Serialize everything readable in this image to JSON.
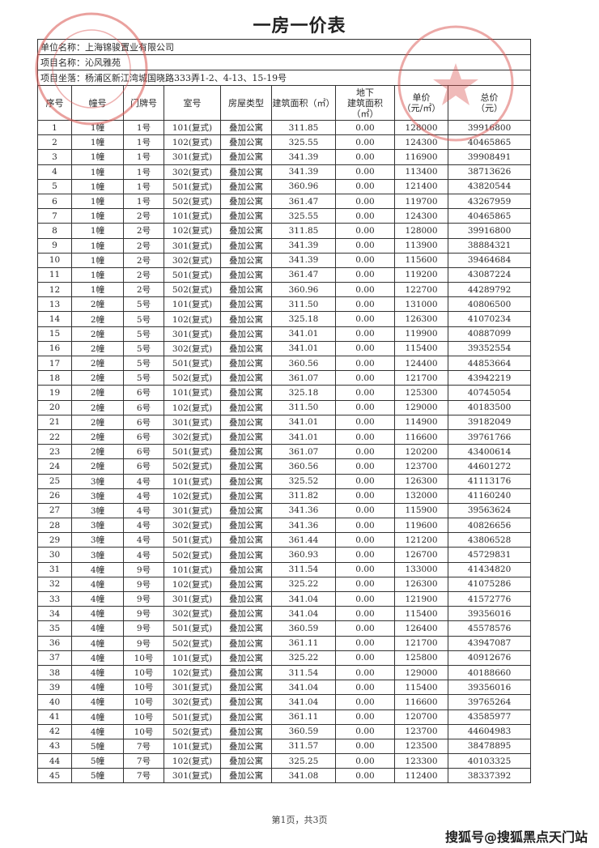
{
  "title": "一房一价表",
  "info": {
    "company": "单位名称：上海锦骏置业有限公司",
    "project": "项目名称：沁风雅苑",
    "location": "项目坐落：杨浦区新江湾城国晓路333弄1-2、4-13、15-19号"
  },
  "columns": [
    "序号",
    "幢号",
    "门牌号",
    "室号",
    "房屋类型",
    "建筑面积（㎡）",
    "地下\n建筑面积\n（㎡）",
    "单价\n（元/㎡）",
    "总价\n（元）"
  ],
  "rows": [
    [
      "1",
      "1幢",
      "1号",
      "101(复式)",
      "叠加公寓",
      "311.85",
      "0.00",
      "128000",
      "39916800"
    ],
    [
      "2",
      "1幢",
      "1号",
      "102(复式)",
      "叠加公寓",
      "325.55",
      "0.00",
      "124300",
      "40465865"
    ],
    [
      "3",
      "1幢",
      "1号",
      "301(复式)",
      "叠加公寓",
      "341.39",
      "0.00",
      "116900",
      "39908491"
    ],
    [
      "4",
      "1幢",
      "1号",
      "302(复式)",
      "叠加公寓",
      "341.39",
      "0.00",
      "113400",
      "38713626"
    ],
    [
      "5",
      "1幢",
      "1号",
      "501(复式)",
      "叠加公寓",
      "360.96",
      "0.00",
      "121400",
      "43820544"
    ],
    [
      "6",
      "1幢",
      "1号",
      "502(复式)",
      "叠加公寓",
      "361.47",
      "0.00",
      "119700",
      "43267959"
    ],
    [
      "7",
      "1幢",
      "2号",
      "101(复式)",
      "叠加公寓",
      "325.55",
      "0.00",
      "124300",
      "40465865"
    ],
    [
      "8",
      "1幢",
      "2号",
      "102(复式)",
      "叠加公寓",
      "311.85",
      "0.00",
      "128000",
      "39916800"
    ],
    [
      "9",
      "1幢",
      "2号",
      "301(复式)",
      "叠加公寓",
      "341.39",
      "0.00",
      "113900",
      "38884321"
    ],
    [
      "10",
      "1幢",
      "2号",
      "302(复式)",
      "叠加公寓",
      "341.39",
      "0.00",
      "115600",
      "39464684"
    ],
    [
      "11",
      "1幢",
      "2号",
      "501(复式)",
      "叠加公寓",
      "361.47",
      "0.00",
      "119200",
      "43087224"
    ],
    [
      "12",
      "1幢",
      "2号",
      "502(复式)",
      "叠加公寓",
      "360.96",
      "0.00",
      "122700",
      "44289792"
    ],
    [
      "13",
      "2幢",
      "5号",
      "101(复式)",
      "叠加公寓",
      "311.50",
      "0.00",
      "131000",
      "40806500"
    ],
    [
      "14",
      "2幢",
      "5号",
      "102(复式)",
      "叠加公寓",
      "325.18",
      "0.00",
      "126300",
      "41070234"
    ],
    [
      "15",
      "2幢",
      "5号",
      "301(复式)",
      "叠加公寓",
      "341.01",
      "0.00",
      "119900",
      "40887099"
    ],
    [
      "16",
      "2幢",
      "5号",
      "302(复式)",
      "叠加公寓",
      "341.01",
      "0.00",
      "115400",
      "39352554"
    ],
    [
      "17",
      "2幢",
      "5号",
      "501(复式)",
      "叠加公寓",
      "360.56",
      "0.00",
      "124400",
      "44853664"
    ],
    [
      "18",
      "2幢",
      "5号",
      "502(复式)",
      "叠加公寓",
      "361.07",
      "0.00",
      "121700",
      "43942219"
    ],
    [
      "19",
      "2幢",
      "6号",
      "101(复式)",
      "叠加公寓",
      "325.18",
      "0.00",
      "125300",
      "40745054"
    ],
    [
      "20",
      "2幢",
      "6号",
      "102(复式)",
      "叠加公寓",
      "311.50",
      "0.00",
      "129000",
      "40183500"
    ],
    [
      "21",
      "2幢",
      "6号",
      "301(复式)",
      "叠加公寓",
      "341.01",
      "0.00",
      "114900",
      "39182049"
    ],
    [
      "22",
      "2幢",
      "6号",
      "302(复式)",
      "叠加公寓",
      "341.01",
      "0.00",
      "116600",
      "39761766"
    ],
    [
      "23",
      "2幢",
      "6号",
      "501(复式)",
      "叠加公寓",
      "361.07",
      "0.00",
      "120200",
      "43400614"
    ],
    [
      "24",
      "2幢",
      "6号",
      "502(复式)",
      "叠加公寓",
      "360.56",
      "0.00",
      "123700",
      "44601272"
    ],
    [
      "25",
      "3幢",
      "4号",
      "101(复式)",
      "叠加公寓",
      "325.52",
      "0.00",
      "126300",
      "41113176"
    ],
    [
      "26",
      "3幢",
      "4号",
      "102(复式)",
      "叠加公寓",
      "311.82",
      "0.00",
      "132000",
      "41160240"
    ],
    [
      "27",
      "3幢",
      "4号",
      "301(复式)",
      "叠加公寓",
      "341.36",
      "0.00",
      "115900",
      "39563624"
    ],
    [
      "28",
      "3幢",
      "4号",
      "302(复式)",
      "叠加公寓",
      "341.36",
      "0.00",
      "119600",
      "40826656"
    ],
    [
      "29",
      "3幢",
      "4号",
      "501(复式)",
      "叠加公寓",
      "361.44",
      "0.00",
      "121200",
      "43806528"
    ],
    [
      "30",
      "3幢",
      "4号",
      "502(复式)",
      "叠加公寓",
      "360.93",
      "0.00",
      "126700",
      "45729831"
    ],
    [
      "31",
      "4幢",
      "9号",
      "101(复式)",
      "叠加公寓",
      "311.54",
      "0.00",
      "133000",
      "41434820"
    ],
    [
      "32",
      "4幢",
      "9号",
      "102(复式)",
      "叠加公寓",
      "325.22",
      "0.00",
      "126300",
      "41075286"
    ],
    [
      "33",
      "4幢",
      "9号",
      "301(复式)",
      "叠加公寓",
      "341.04",
      "0.00",
      "121900",
      "41572776"
    ],
    [
      "34",
      "4幢",
      "9号",
      "302(复式)",
      "叠加公寓",
      "341.04",
      "0.00",
      "115400",
      "39356016"
    ],
    [
      "35",
      "4幢",
      "9号",
      "501(复式)",
      "叠加公寓",
      "360.59",
      "0.00",
      "126400",
      "45578576"
    ],
    [
      "36",
      "4幢",
      "9号",
      "502(复式)",
      "叠加公寓",
      "361.11",
      "0.00",
      "121700",
      "43947087"
    ],
    [
      "37",
      "4幢",
      "10号",
      "101(复式)",
      "叠加公寓",
      "325.22",
      "0.00",
      "125800",
      "40912676"
    ],
    [
      "38",
      "4幢",
      "10号",
      "102(复式)",
      "叠加公寓",
      "311.54",
      "0.00",
      "129000",
      "40188660"
    ],
    [
      "39",
      "4幢",
      "10号",
      "301(复式)",
      "叠加公寓",
      "341.04",
      "0.00",
      "115400",
      "39356016"
    ],
    [
      "40",
      "4幢",
      "10号",
      "302(复式)",
      "叠加公寓",
      "341.04",
      "0.00",
      "116600",
      "39765264"
    ],
    [
      "41",
      "4幢",
      "10号",
      "501(复式)",
      "叠加公寓",
      "361.11",
      "0.00",
      "120700",
      "43585977"
    ],
    [
      "42",
      "4幢",
      "10号",
      "502(复式)",
      "叠加公寓",
      "360.59",
      "0.00",
      "123700",
      "44604983"
    ],
    [
      "43",
      "5幢",
      "7号",
      "101(复式)",
      "叠加公寓",
      "311.57",
      "0.00",
      "123500",
      "38478895"
    ],
    [
      "44",
      "5幢",
      "7号",
      "102(复式)",
      "叠加公寓",
      "325.25",
      "0.00",
      "123300",
      "40103325"
    ],
    [
      "45",
      "5幢",
      "7号",
      "301(复式)",
      "叠加公寓",
      "341.08",
      "0.00",
      "112400",
      "38337392"
    ]
  ],
  "footer": "第1页，共3页",
  "watermark": "搜狐号@搜狐黑点天门站",
  "stamps": {
    "left_text": "JIN JUN REAL ESTATE CO., LTD.",
    "color": "#d9534f"
  }
}
